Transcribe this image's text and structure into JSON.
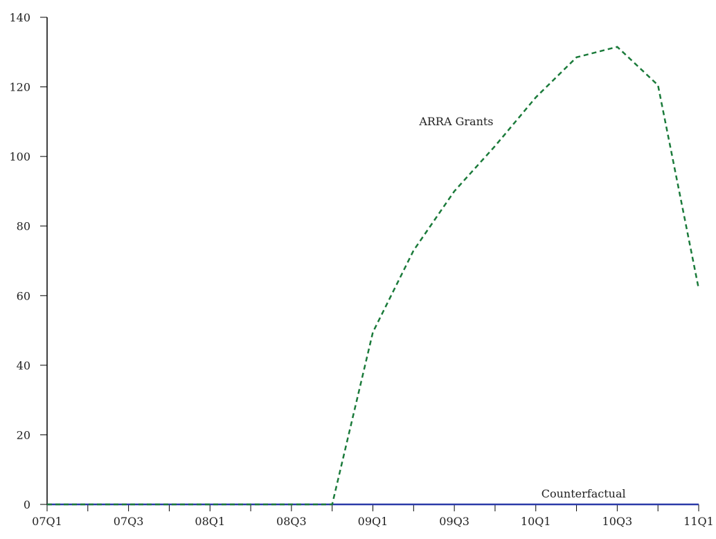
{
  "chart_data": {
    "type": "line",
    "title": "",
    "xlabel": "",
    "ylabel": "",
    "x": [
      "07Q1",
      "07Q2",
      "07Q3",
      "07Q4",
      "08Q1",
      "08Q2",
      "08Q3",
      "08Q4",
      "09Q1",
      "09Q2",
      "09Q3",
      "09Q4",
      "10Q1",
      "10Q2",
      "10Q3",
      "10Q4",
      "11Q1"
    ],
    "x_tick_labels": [
      "07Q1",
      "07Q3",
      "08Q1",
      "08Q3",
      "09Q1",
      "09Q3",
      "10Q1",
      "10Q3",
      "11Q1"
    ],
    "ylim": [
      0,
      140
    ],
    "y_ticks": [
      0,
      20,
      40,
      60,
      80,
      100,
      120,
      140
    ],
    "grid": false,
    "series": [
      {
        "name": "ARRA Grants",
        "style": "dashed",
        "color": "#1a7a3a",
        "values": [
          0,
          0,
          0,
          0,
          0,
          0,
          0,
          0,
          49.5,
          73,
          90,
          103,
          117,
          128.5,
          131.5,
          120.5,
          62
        ]
      },
      {
        "name": "Counterfactual",
        "style": "solid",
        "color": "#2b3aa8",
        "values": [
          0,
          0,
          0,
          0,
          0,
          0,
          0,
          0,
          0,
          0,
          0,
          0,
          0,
          0,
          0,
          0,
          0
        ]
      }
    ],
    "annotations": [
      {
        "text": "ARRA Grants",
        "x": "09Q2",
        "y": 109
      },
      {
        "text": "Counterfactual",
        "x": "10Q1",
        "y": 2
      }
    ],
    "zero_line_color": "#9a9a9a",
    "axis_color": "#000000"
  }
}
